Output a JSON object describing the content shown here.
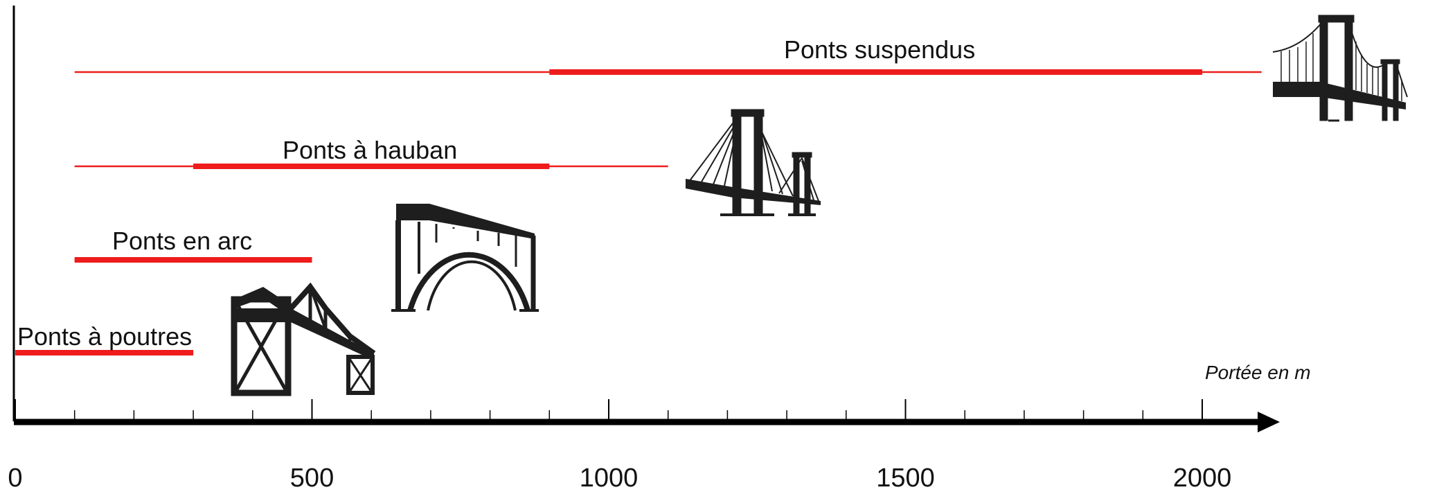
{
  "chart_data": {
    "type": "range",
    "xlabel": "Portée en m",
    "ylabel": "",
    "xlim": [
      0,
      2100
    ],
    "major_ticks": [
      0,
      500,
      1000,
      1500,
      2000
    ],
    "minor_tick_step": 100,
    "grid": false,
    "colors": {
      "range": "#ee1c1c",
      "axis": "#000000"
    },
    "series": [
      {
        "name": "Ponts à poutres",
        "icon": "beam-bridge-icon",
        "range": [
          0,
          300
        ],
        "typical": [
          0,
          300
        ]
      },
      {
        "name": "Ponts en arc",
        "icon": "arch-bridge-icon",
        "range": [
          100,
          500
        ],
        "typical": [
          100,
          500
        ]
      },
      {
        "name": "Ponts à hauban",
        "icon": "cable-stayed-bridge-icon",
        "range": [
          100,
          1100
        ],
        "typical": [
          300,
          900
        ]
      },
      {
        "name": "Ponts suspendus",
        "icon": "suspension-bridge-icon",
        "range": [
          100,
          2100
        ],
        "typical": [
          900,
          2000
        ]
      }
    ]
  }
}
